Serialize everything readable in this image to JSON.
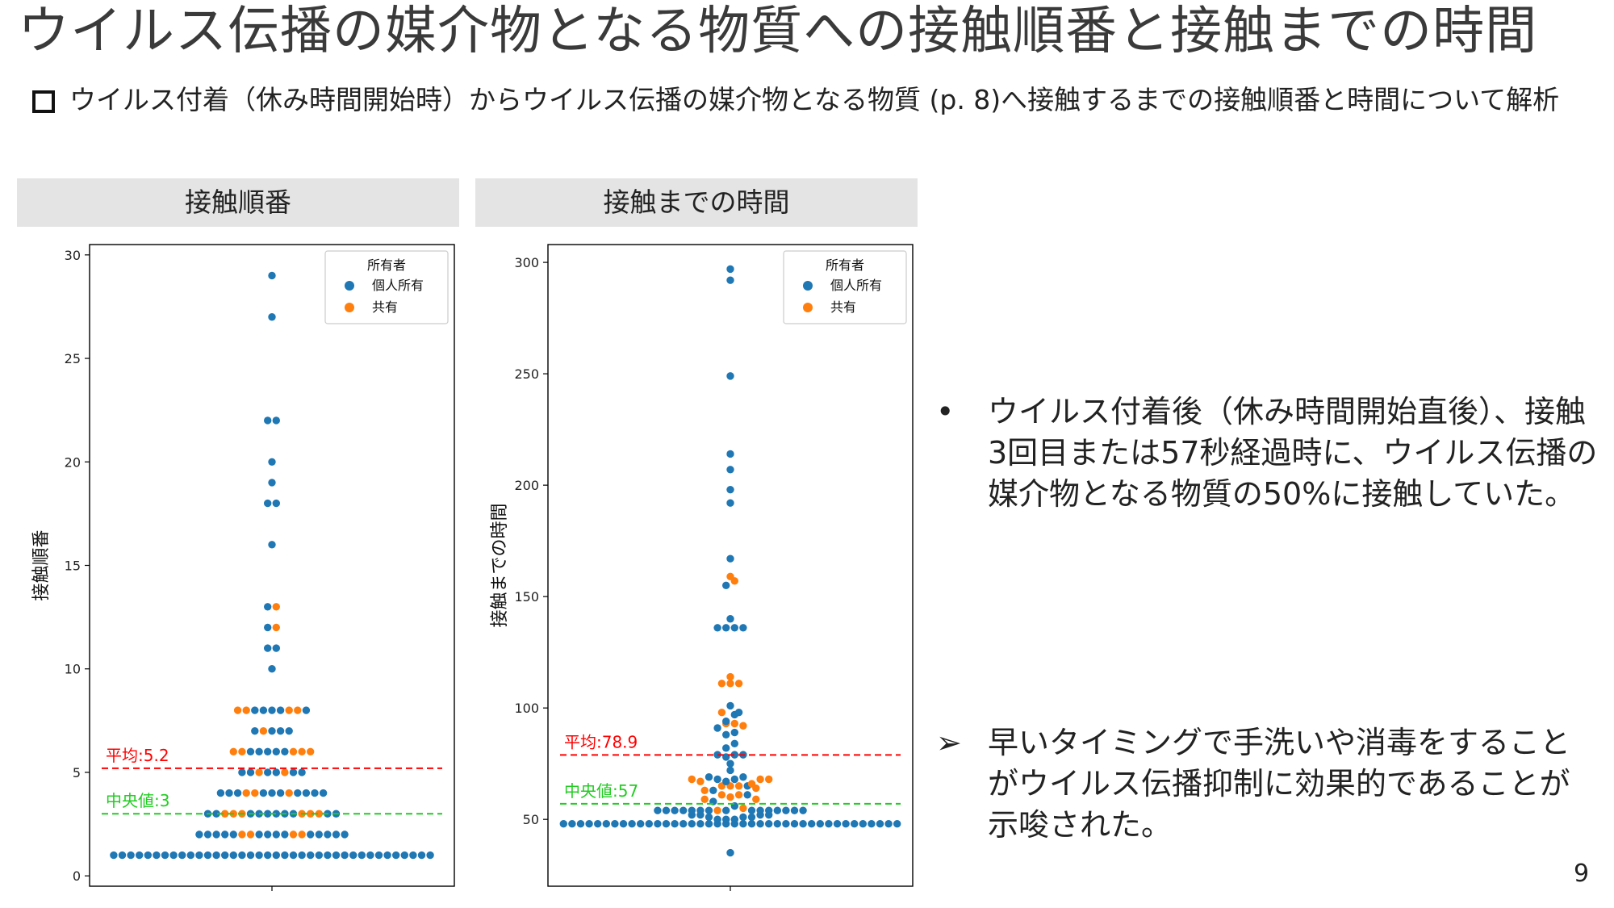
{
  "title": "ウイルス伝播の媒介物となる物質への接触順番と接触までの時間",
  "intro": "ウイルス付着（休み時間開始時）からウイルス伝播の媒介物となる物質 (p. 8)へ接触するまでの接触順番と時間について解析",
  "panels": {
    "left_header": "接触順番",
    "right_header": "接触までの時間"
  },
  "colors": {
    "private": "#1f77b4",
    "shared": "#ff7f0e",
    "mean_line": "#ff0000",
    "median_line": "#22cc22"
  },
  "chart_data": [
    {
      "type": "scatter",
      "subtype": "swarm",
      "xlabel": "",
      "ylabel": "接触順番",
      "ylim": [
        -0.5,
        30.5
      ],
      "yticks": [
        0,
        5,
        10,
        15,
        20,
        25,
        30
      ],
      "grid": false,
      "legend_title": "所有者",
      "legend_position": "top-right",
      "series": [
        {
          "name": "個人所有",
          "values": [
            1,
            1,
            1,
            1,
            1,
            1,
            1,
            1,
            1,
            1,
            1,
            1,
            1,
            1,
            1,
            1,
            1,
            1,
            1,
            1,
            1,
            1,
            1,
            1,
            1,
            1,
            1,
            1,
            1,
            1,
            1,
            1,
            1,
            1,
            1,
            1,
            1,
            1,
            2,
            2,
            2,
            2,
            2,
            2,
            2,
            2,
            2,
            2,
            2,
            2,
            2,
            2,
            3,
            3,
            3,
            3,
            3,
            3,
            3,
            3,
            3,
            3,
            4,
            4,
            4,
            4,
            4,
            4,
            4,
            4,
            4,
            4,
            5,
            5,
            5,
            5,
            5,
            5,
            6,
            6,
            6,
            6,
            6,
            7,
            7,
            7,
            7,
            8,
            8,
            8,
            8,
            8,
            10,
            11,
            11,
            12,
            13,
            16,
            18,
            18,
            19,
            20,
            22,
            22,
            27,
            29
          ]
        },
        {
          "name": "共有",
          "values": [
            2,
            2,
            2,
            2,
            3,
            3,
            3,
            3,
            3,
            3,
            4,
            4,
            4,
            5,
            5,
            6,
            6,
            6,
            6,
            6,
            7,
            8,
            8,
            8,
            8,
            12,
            13
          ]
        }
      ],
      "annotations": [
        {
          "label": "平均:5.2",
          "value": 5.2,
          "kind": "mean"
        },
        {
          "label": "中央値:3",
          "value": 3,
          "kind": "median"
        }
      ]
    },
    {
      "type": "scatter",
      "subtype": "swarm",
      "xlabel": "",
      "ylabel": "接触までの時間",
      "ylim": [
        20,
        308
      ],
      "yticks": [
        50,
        100,
        150,
        200,
        250,
        300
      ],
      "grid": false,
      "legend_title": "所有者",
      "legend_position": "top-right",
      "series": [
        {
          "name": "個人所有",
          "values": [
            35,
            48,
            48,
            48,
            48,
            48,
            48,
            48,
            48,
            48,
            48,
            48,
            48,
            48,
            48,
            48,
            48,
            48,
            48,
            48,
            48,
            48,
            48,
            48,
            48,
            48,
            48,
            48,
            48,
            48,
            48,
            48,
            48,
            48,
            48,
            48,
            48,
            48,
            48,
            48,
            48,
            50,
            50,
            50,
            51,
            51,
            51,
            52,
            52,
            52,
            52,
            54,
            54,
            54,
            54,
            54,
            54,
            54,
            54,
            54,
            54,
            54,
            54,
            54,
            54,
            54,
            56,
            58,
            61,
            63,
            65,
            67,
            68,
            68,
            69,
            69,
            72,
            75,
            78,
            79,
            79,
            79,
            82,
            84,
            88,
            89,
            91,
            94,
            97,
            98,
            101,
            136,
            136,
            136,
            136,
            140,
            155,
            167,
            192,
            198,
            207,
            214,
            249,
            292,
            297
          ]
        },
        {
          "name": "共有",
          "values": [
            54,
            55,
            59,
            59,
            60,
            61,
            61,
            63,
            64,
            65,
            65,
            65,
            66,
            67,
            68,
            68,
            68,
            92,
            93,
            93,
            98,
            111,
            111,
            111,
            114,
            157,
            159
          ]
        }
      ],
      "annotations": [
        {
          "label": "平均:78.9",
          "value": 78.9,
          "kind": "mean"
        },
        {
          "label": "中央値:57",
          "value": 57,
          "kind": "median"
        }
      ]
    }
  ],
  "bullets": [
    {
      "mark": "•",
      "text": "ウイルス付着後（休み時間開始直後）、接触3回目または57秒経過時に、ウイルス伝播の媒介物となる物質の50%に接触していた。"
    }
  ],
  "conclusions": [
    {
      "mark": "➢",
      "text": "早いタイミングで手洗いや消毒をすることがウイルス伝播抑制に効果的であることが示唆された。"
    }
  ],
  "page_number": "9"
}
